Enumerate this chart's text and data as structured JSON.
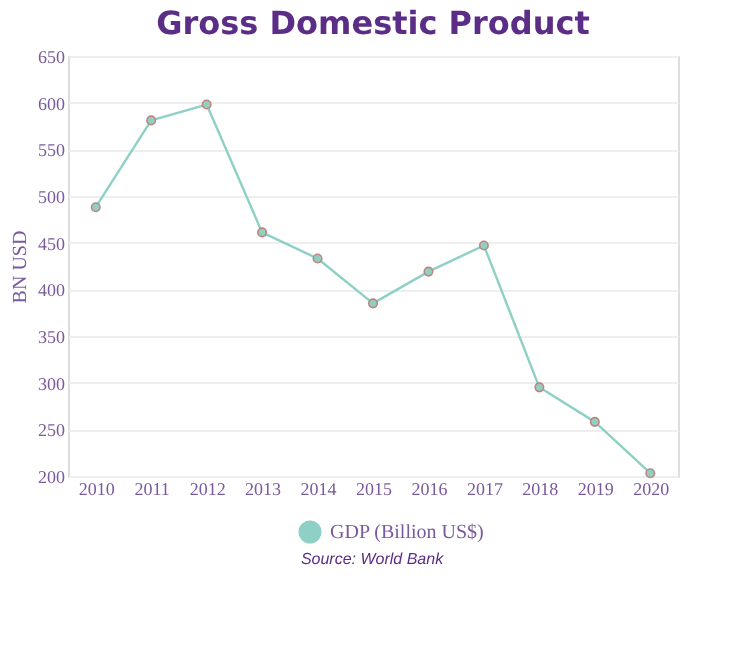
{
  "chart_data": {
    "type": "line",
    "title": "Gross Domestic Product",
    "ylabel": "BN USD",
    "categories": [
      "2010",
      "2011",
      "2012",
      "2013",
      "2014",
      "2015",
      "2016",
      "2017",
      "2018",
      "2019",
      "2020"
    ],
    "series": [
      {
        "name": "GDP (Billion US$)",
        "color": "#8fd0c6",
        "values": [
          488,
          581,
          598,
          461,
          433,
          385,
          419,
          447,
          295,
          258,
          203
        ]
      }
    ],
    "ylim": [
      200,
      650
    ],
    "yticks": [
      200,
      250,
      300,
      350,
      400,
      450,
      500,
      550,
      600,
      650
    ],
    "grid": "y",
    "legend": "bottom",
    "marker": "circle",
    "annotations": [
      "Source: World Bank"
    ]
  }
}
